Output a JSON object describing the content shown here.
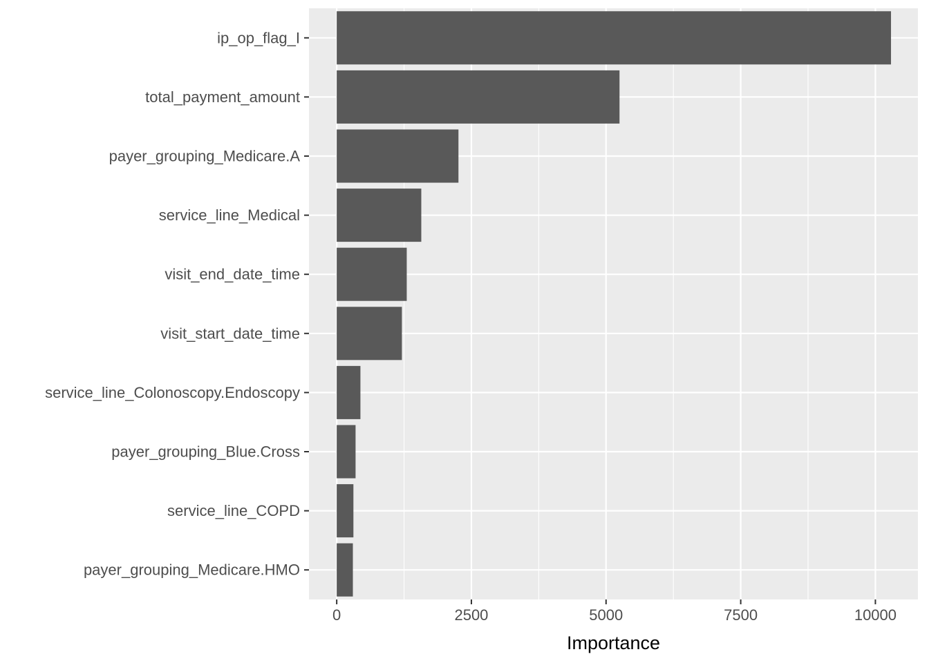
{
  "chart_data": {
    "type": "bar",
    "orientation": "horizontal",
    "xlabel": "Importance",
    "ylabel": "",
    "categories": [
      "ip_op_flag_I",
      "total_payment_amount",
      "payer_grouping_Medicare.A",
      "service_line_Medical",
      "visit_end_date_time",
      "visit_start_date_time",
      "service_line_Colonoscopy.Endoscopy",
      "payer_grouping_Blue.Cross",
      "service_line_COPD",
      "payer_grouping_Medicare.HMO"
    ],
    "values": [
      10290,
      5250,
      2260,
      1570,
      1300,
      1210,
      440,
      350,
      310,
      300
    ],
    "xlim": [
      -515,
      10790
    ],
    "xticks": [
      0,
      2500,
      5000,
      7500,
      10000
    ],
    "xtick_labels": [
      "0",
      "2500",
      "5000",
      "7500",
      "10000"
    ],
    "grid": true,
    "legend": "none",
    "colors": {
      "bar": "#595959",
      "panel_background": "#ebebeb",
      "grid": "#ffffff",
      "tick_text": "#4d4d4d"
    }
  }
}
